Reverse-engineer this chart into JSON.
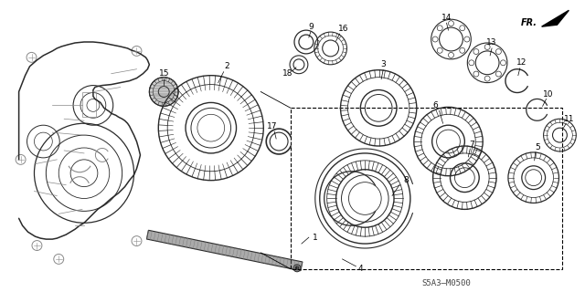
{
  "background_color": "#ffffff",
  "diagram_code": "S5A3–M0500",
  "fr_label": "FR.",
  "figsize": [
    6.4,
    3.2
  ],
  "dpi": 100,
  "line_color": "#2a2a2a",
  "gray_color": "#888888"
}
